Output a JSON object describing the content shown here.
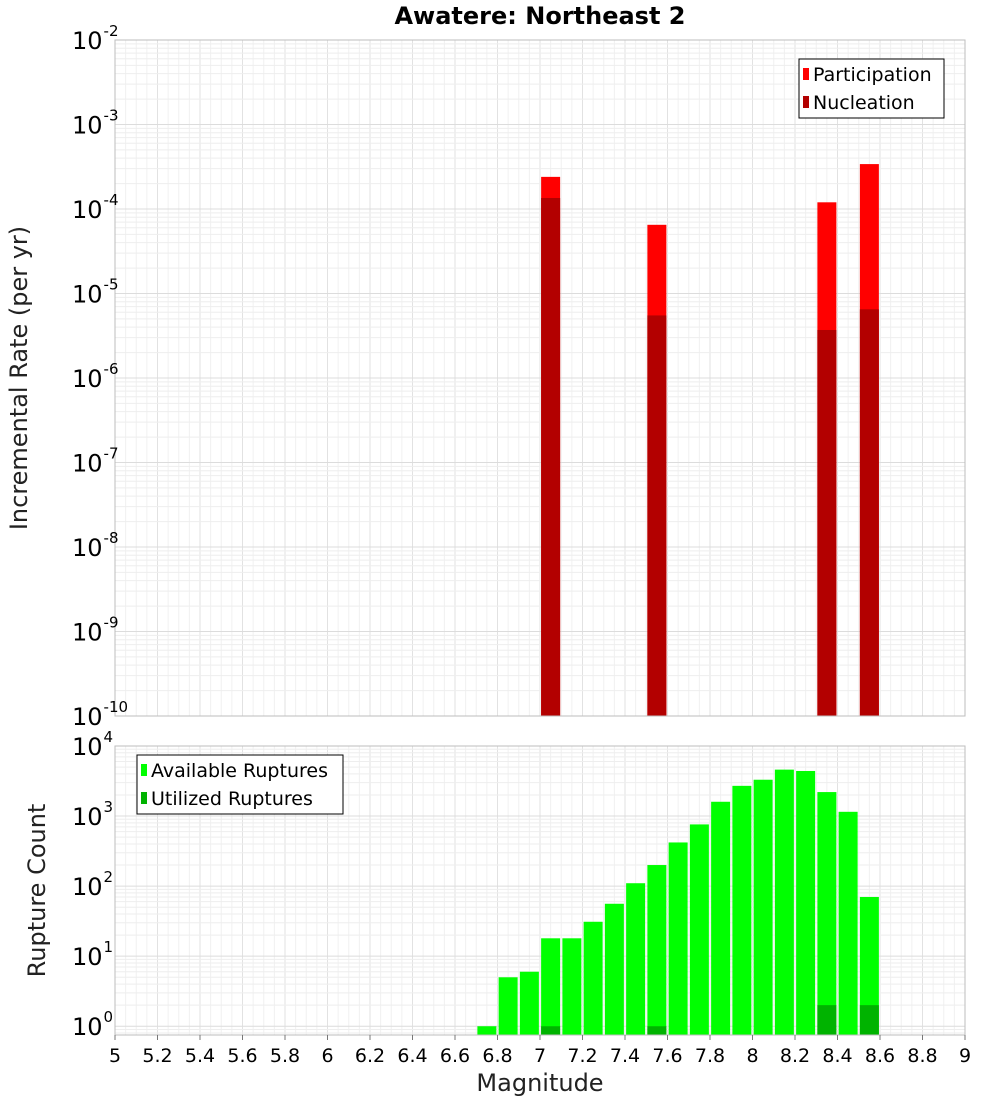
{
  "title": "Awatere: Northeast 2",
  "chart_data": [
    {
      "type": "bar",
      "ylabel": "Incremental Rate (per yr)",
      "y_scale": "log",
      "ylim": [
        1e-10,
        0.01
      ],
      "xlim": [
        5,
        9
      ],
      "grid": true,
      "legend_position": "top-right",
      "y_ticks": [
        {
          "base": "10",
          "exp": "-10",
          "value": 1e-10
        },
        {
          "base": "10",
          "exp": "-9",
          "value": 1e-09
        },
        {
          "base": "10",
          "exp": "-8",
          "value": 1e-08
        },
        {
          "base": "10",
          "exp": "-7",
          "value": 1e-07
        },
        {
          "base": "10",
          "exp": "-6",
          "value": 1e-06
        },
        {
          "base": "10",
          "exp": "-5",
          "value": 1e-05
        },
        {
          "base": "10",
          "exp": "-4",
          "value": 0.0001
        },
        {
          "base": "10",
          "exp": "-3",
          "value": 0.001
        },
        {
          "base": "10",
          "exp": "-2",
          "value": 0.01
        }
      ],
      "series": [
        {
          "name": "Participation",
          "color": "#ff0000",
          "points": [
            {
              "x": 7.05,
              "y": 0.00024
            },
            {
              "x": 7.55,
              "y": 6.5e-05
            },
            {
              "x": 8.35,
              "y": 0.00012
            },
            {
              "x": 8.55,
              "y": 0.00034
            }
          ]
        },
        {
          "name": "Nucleation",
          "color": "#b30000",
          "points": [
            {
              "x": 7.05,
              "y": 0.000135
            },
            {
              "x": 7.55,
              "y": 5.5e-06
            },
            {
              "x": 8.35,
              "y": 3.7e-06
            },
            {
              "x": 8.55,
              "y": 6.5e-06
            }
          ]
        }
      ]
    },
    {
      "type": "bar",
      "ylabel": "Rupture Count",
      "xlabel": "Magnitude",
      "y_scale": "log",
      "ylim": [
        0.75,
        10000
      ],
      "xlim": [
        5,
        9
      ],
      "grid": true,
      "legend_position": "top-left",
      "y_ticks": [
        {
          "base": "10",
          "exp": "0",
          "value": 1
        },
        {
          "base": "10",
          "exp": "1",
          "value": 10
        },
        {
          "base": "10",
          "exp": "2",
          "value": 100
        },
        {
          "base": "10",
          "exp": "3",
          "value": 1000
        },
        {
          "base": "10",
          "exp": "4",
          "value": 10000
        }
      ],
      "x_ticks": [
        "5",
        "5.2",
        "5.4",
        "5.6",
        "5.8",
        "6",
        "6.2",
        "6.4",
        "6.6",
        "6.8",
        "7",
        "7.2",
        "7.4",
        "7.6",
        "7.8",
        "8",
        "8.2",
        "8.4",
        "8.6",
        "8.8",
        "9"
      ],
      "series": [
        {
          "name": "Available Ruptures",
          "color": "#00ff00",
          "points": [
            {
              "x": 6.75,
              "y": 1
            },
            {
              "x": 6.85,
              "y": 5
            },
            {
              "x": 6.95,
              "y": 6
            },
            {
              "x": 7.05,
              "y": 18
            },
            {
              "x": 7.15,
              "y": 18
            },
            {
              "x": 7.25,
              "y": 31
            },
            {
              "x": 7.35,
              "y": 56
            },
            {
              "x": 7.45,
              "y": 110
            },
            {
              "x": 7.55,
              "y": 200
            },
            {
              "x": 7.65,
              "y": 420
            },
            {
              "x": 7.75,
              "y": 760
            },
            {
              "x": 7.85,
              "y": 1600
            },
            {
              "x": 7.95,
              "y": 2700
            },
            {
              "x": 8.05,
              "y": 3300
            },
            {
              "x": 8.15,
              "y": 4600
            },
            {
              "x": 8.25,
              "y": 4400
            },
            {
              "x": 8.35,
              "y": 2200
            },
            {
              "x": 8.45,
              "y": 1150
            },
            {
              "x": 8.55,
              "y": 70
            }
          ]
        },
        {
          "name": "Utilized Ruptures",
          "color": "#00b300",
          "points": [
            {
              "x": 7.05,
              "y": 1
            },
            {
              "x": 7.55,
              "y": 1
            },
            {
              "x": 8.35,
              "y": 2
            },
            {
              "x": 8.55,
              "y": 2
            }
          ]
        }
      ]
    }
  ]
}
